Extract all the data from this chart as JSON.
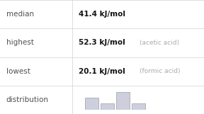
{
  "row_labels": [
    "median",
    "highest",
    "lowest",
    "distribution"
  ],
  "row_values": [
    "41.4 kJ/mol",
    "52.3 kJ/mol",
    "20.1 kJ/mol",
    ""
  ],
  "row_notes": [
    "",
    "(acetic acid)",
    "(formic acid)",
    ""
  ],
  "hist_bars": [
    2,
    1,
    3,
    1
  ],
  "bar_color": "#cdd0dc",
  "bar_edge_color": "#a8abbа",
  "label_color": "#505050",
  "value_color": "#111111",
  "note_color": "#aaaaaa",
  "line_color": "#d0d0d0",
  "bg_color": "#ffffff",
  "value_fontsize": 7.5,
  "label_fontsize": 7.5,
  "note_fontsize": 6.5,
  "col_split": 0.355
}
